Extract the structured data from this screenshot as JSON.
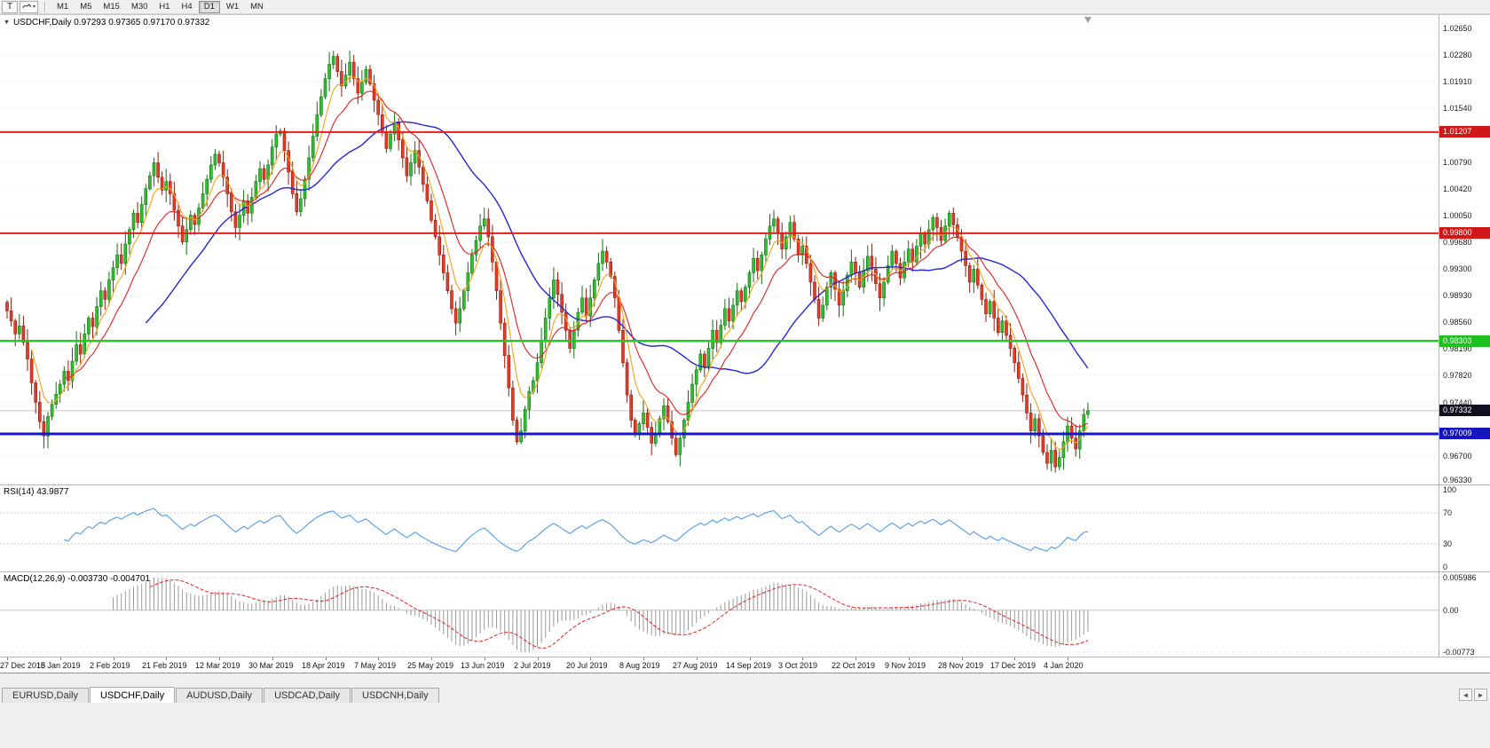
{
  "header": {
    "symbol_ohlc": "USDCHF,Daily  0.97293 0.97365 0.97170 0.97332"
  },
  "toolbar": {
    "tools": [
      {
        "label": "T"
      }
    ],
    "timeframes": [
      "M1",
      "M5",
      "M15",
      "M30",
      "H1",
      "H4",
      "D1",
      "W1",
      "MN"
    ],
    "active_timeframe": "D1"
  },
  "tabs": {
    "items": [
      {
        "label": "EURUSD,Daily",
        "active": false
      },
      {
        "label": "USDCHF,Daily",
        "active": true
      },
      {
        "label": "AUDUSD,Daily",
        "active": false
      },
      {
        "label": "USDCAD,Daily",
        "active": false
      },
      {
        "label": "USDCNH,Daily",
        "active": false
      }
    ],
    "scroll_left": "◄",
    "scroll_right": "►"
  },
  "rsi": {
    "label": "RSI(14) 43.9877",
    "period": 14,
    "axis_labels": [
      "100",
      "70",
      "30",
      "0"
    ],
    "axis_values": [
      100,
      70,
      30,
      0
    ],
    "level_lines": [
      70,
      30
    ],
    "color": "#4f9ce8"
  },
  "macd": {
    "label": "MACD(12,26,9) -0.003730 -0.004701",
    "fast": 12,
    "slow": 26,
    "signal": 9,
    "axis_labels": [
      {
        "label": "0.005986",
        "value": 0.005986
      },
      {
        "label": "0.00",
        "value": 0
      },
      {
        "label": "-0.00773",
        "value": -0.00773
      }
    ],
    "range": [
      -0.00773,
      0.005986
    ],
    "bar_color": "#9a9a9a",
    "signal_color": "#e02020"
  },
  "chart_data": {
    "type": "candlestick",
    "symbol": "USDCHF",
    "timeframe": "Daily",
    "ohlc_current": {
      "open": "0.97293",
      "high": "0.97365",
      "low": "0.97170",
      "close": "0.97332"
    },
    "price_axis": {
      "min": 0.9633,
      "max": 1.0265,
      "labels": [
        1.0265,
        1.0228,
        1.0191,
        1.0154,
        1.0079,
        1.0042,
        1.0005,
        0.9968,
        0.993,
        0.9893,
        0.9856,
        0.9819,
        0.9782,
        0.9744,
        0.967,
        0.9633
      ]
    },
    "x_axis_dates": [
      "27 Dec 2018",
      "15 Jan 2019",
      "2 Feb 2019",
      "21 Feb 2019",
      "12 Mar 2019",
      "30 Mar 2019",
      "18 Apr 2019",
      "7 May 2019",
      "25 May 2019",
      "13 Jun 2019",
      "2 Jul 2019",
      "20 Jul 2019",
      "8 Aug 2019",
      "27 Aug 2019",
      "14 Sep 2019",
      "3 Oct 2019",
      "22 Oct 2019",
      "9 Nov 2019",
      "28 Nov 2019",
      "17 Dec 2019",
      "4 Jan 2020"
    ],
    "hlines": [
      {
        "value": 1.01207,
        "label": "1.01207",
        "line_color": "#e02020",
        "badge_bg": "#d01818",
        "width": 2
      },
      {
        "value": 0.998,
        "label": "0.99800",
        "line_color": "#e02020",
        "badge_bg": "#d01818",
        "width": 2
      },
      {
        "value": 0.98303,
        "label": "0.98303",
        "line_color": "#22c922",
        "badge_bg": "#1fbf1f",
        "width": 2.5
      },
      {
        "value": 0.97009,
        "label": "0.97009",
        "line_color": "#1616cf",
        "badge_bg": "#1414c0",
        "width": 3
      }
    ],
    "current_price": {
      "value": 0.97332,
      "label": "0.97332",
      "badge_bg": "#10101e"
    },
    "moving_averages": [
      {
        "name": "slow-ma",
        "type": "sma",
        "period": 34,
        "color": "#2626d8",
        "width": 1.4
      },
      {
        "name": "mid-ma",
        "type": "ema",
        "period": 14,
        "color": "#e02020",
        "width": 1.1
      },
      {
        "name": "fast-ma",
        "type": "ema",
        "period": 6,
        "color": "#f6a21a",
        "width": 1.1
      }
    ],
    "colors": {
      "bull": "#2fc12f",
      "bull_border": "#156f15",
      "bear": "#e83b26",
      "bear_border": "#8f1d10",
      "grid": "#e0e0e0",
      "current_line": "#c4c4c4"
    },
    "closes": [
      0.9872,
      0.9858,
      0.984,
      0.9851,
      0.9828,
      0.9805,
      0.9772,
      0.9745,
      0.9718,
      0.9698,
      0.9725,
      0.9742,
      0.9756,
      0.977,
      0.9788,
      0.9775,
      0.9802,
      0.9825,
      0.9812,
      0.984,
      0.9862,
      0.985,
      0.9878,
      0.99,
      0.9888,
      0.9915,
      0.9932,
      0.995,
      0.9938,
      0.9965,
      0.9985,
      1.0008,
      0.9995,
      1.002,
      1.0042,
      1.006,
      1.0078,
      1.0058,
      1.004,
      1.0052,
      1.0035,
      1.0012,
      0.999,
      0.9968,
      0.9985,
      1.0005,
      0.9992,
      1.0015,
      1.0035,
      1.0055,
      1.0075,
      1.009,
      1.0078,
      1.0058,
      1.0035,
      1.001,
      0.9988,
      1.0005,
      1.0025,
      1.0008,
      1.003,
      1.0052,
      1.007,
      1.0055,
      1.0075,
      1.01,
      1.0118,
      1.0122,
      1.0095,
      1.0065,
      1.0035,
      1.001,
      1.0028,
      1.0055,
      1.0085,
      1.0115,
      1.0145,
      1.017,
      1.0195,
      1.0215,
      1.0226,
      1.0205,
      1.0185,
      1.02,
      1.0218,
      1.0195,
      1.0175,
      1.019,
      1.0208,
      1.0188,
      1.0165,
      1.0145,
      1.012,
      1.0098,
      1.0118,
      1.0135,
      1.011,
      1.0085,
      1.006,
      1.0078,
      1.0095,
      1.0072,
      1.0048,
      1.0025,
      0.9998,
      0.9975,
      0.995,
      0.9925,
      0.99,
      0.9875,
      0.9855,
      0.9875,
      0.99,
      0.9925,
      0.995,
      0.997,
      0.999,
      1.0,
      0.9975,
      0.994,
      0.99,
      0.9855,
      0.981,
      0.9765,
      0.972,
      0.969,
      0.9705,
      0.9735,
      0.976,
      0.9775,
      0.98,
      0.983,
      0.9862,
      0.989,
      0.9915,
      0.9895,
      0.987,
      0.9845,
      0.982,
      0.9845,
      0.987,
      0.989,
      0.9865,
      0.989,
      0.9915,
      0.9938,
      0.9955,
      0.994,
      0.992,
      0.989,
      0.9845,
      0.98,
      0.9755,
      0.972,
      0.97,
      0.9715,
      0.973,
      0.971,
      0.9688,
      0.9702,
      0.9722,
      0.974,
      0.9718,
      0.9695,
      0.9672,
      0.9695,
      0.972,
      0.9745,
      0.977,
      0.979,
      0.9812,
      0.9795,
      0.982,
      0.9845,
      0.9828,
      0.9852,
      0.9875,
      0.9858,
      0.988,
      0.99,
      0.9885,
      0.9905,
      0.9925,
      0.9945,
      0.9928,
      0.995,
      0.9972,
      0.999,
      1.0,
      0.998,
      0.9958,
      0.9975,
      0.9995,
      0.9972,
      0.995,
      0.9962,
      0.9938,
      0.9912,
      0.9888,
      0.9862,
      0.988,
      0.9905,
      0.9925,
      0.9902,
      0.988,
      0.99,
      0.9922,
      0.994,
      0.9925,
      0.9905,
      0.9928,
      0.9948,
      0.993,
      0.991,
      0.989,
      0.9912,
      0.9935,
      0.9955,
      0.9938,
      0.9918,
      0.994,
      0.9958,
      0.994,
      0.9962,
      0.998,
      0.9965,
      0.9985,
      1.0002,
      0.9988,
      0.997,
      0.999,
      1.0008,
      0.9992,
      0.9975,
      0.9955,
      0.9935,
      0.9912,
      0.993,
      0.9908,
      0.9888,
      0.9868,
      0.9885,
      0.9862,
      0.9842,
      0.9858,
      0.9838,
      0.982,
      0.98,
      0.9778,
      0.9755,
      0.973,
      0.9705,
      0.9722,
      0.9698,
      0.9675,
      0.966,
      0.9678,
      0.9655,
      0.9668,
      0.969,
      0.9712,
      0.9695,
      0.968,
      0.9705,
      0.9728,
      0.97332
    ]
  }
}
